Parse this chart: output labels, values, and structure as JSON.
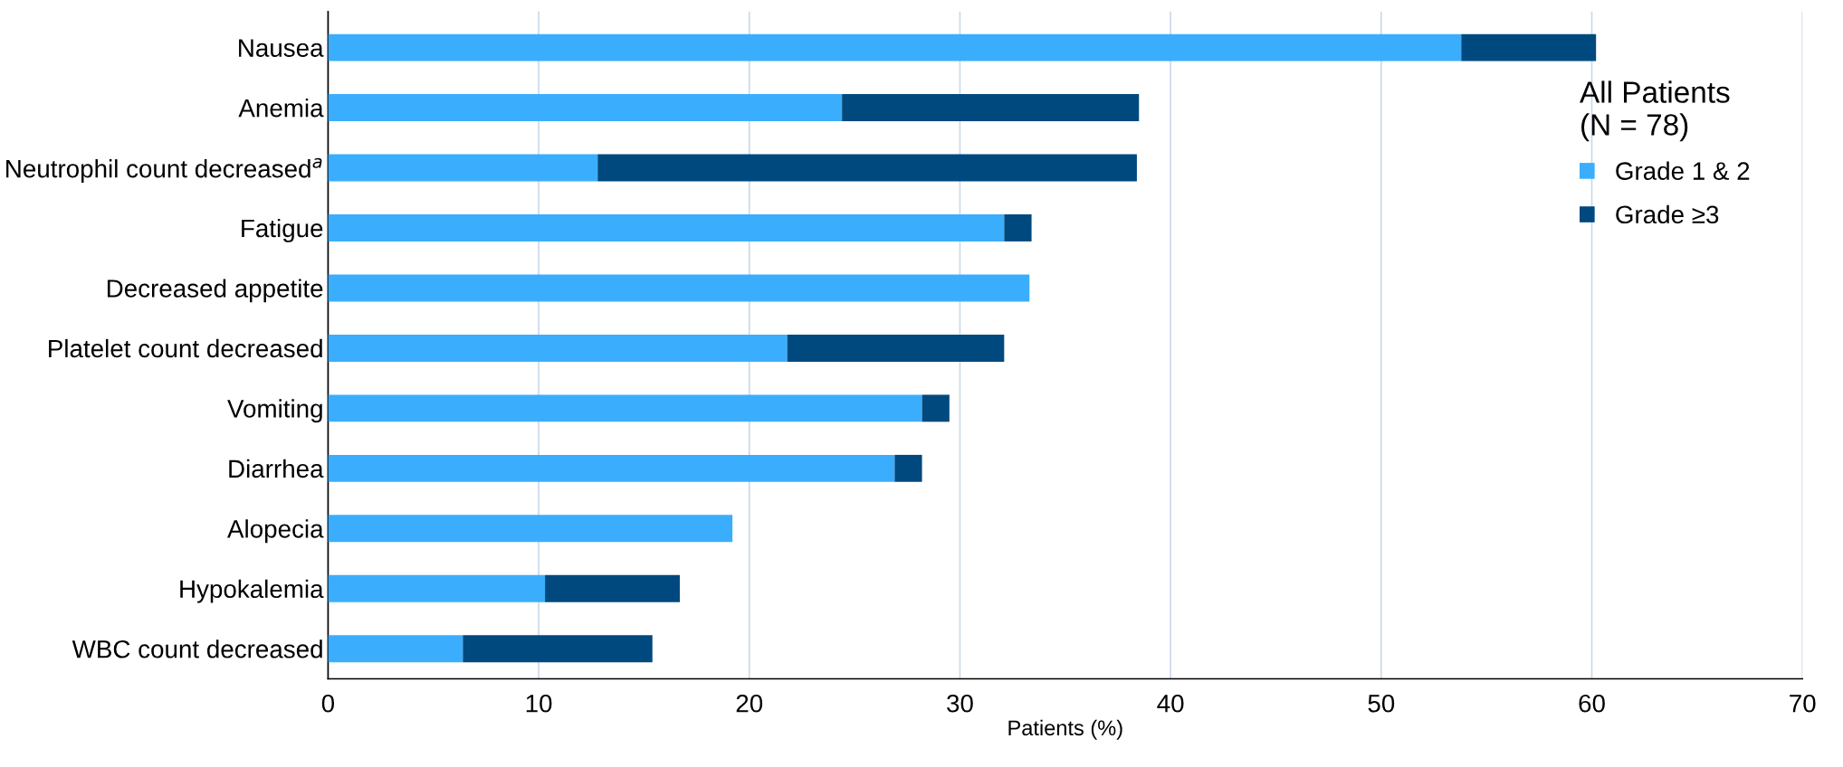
{
  "chart_data": {
    "type": "bar",
    "orientation": "horizontal",
    "stacked": true,
    "xlabel": "Patients (%)",
    "legend_title": "All Patients\n(N = 78)",
    "categories": [
      "Nausea",
      "Anemia",
      "Neutrophil count decreased$^{a}$",
      "Fatigue",
      "Decreased appetite",
      "Platelet count decreased",
      "Vomiting",
      "Diarrhea",
      "Alopecia",
      "Hypokalemia",
      "WBC count decreased"
    ],
    "series": [
      {
        "name": "Grade 1 & 2",
        "color": "#3aaefc",
        "values": [
          53.8,
          24.4,
          12.8,
          32.1,
          33.3,
          21.8,
          28.2,
          26.9,
          19.2,
          10.3,
          6.4
        ]
      },
      {
        "name": "Grade ≥3",
        "color": "#00497e",
        "values": [
          6.4,
          14.1,
          25.6,
          1.3,
          0,
          10.3,
          1.3,
          1.3,
          0,
          6.4,
          9.0
        ]
      }
    ],
    "xlim": [
      0,
      70
    ],
    "xticks": [
      0,
      10,
      20,
      30,
      40,
      50,
      60,
      70
    ],
    "grid": "x",
    "legend": "top right"
  }
}
